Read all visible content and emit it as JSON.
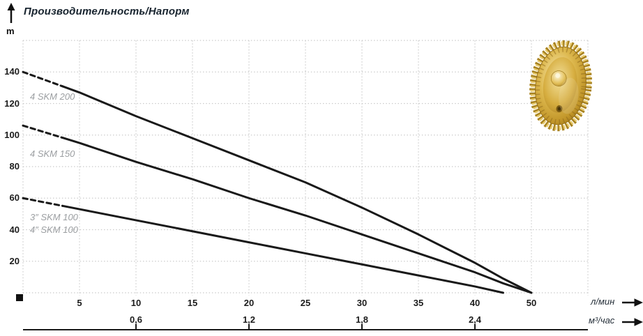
{
  "chart_data": {
    "type": "line",
    "title": "Производительность/Напорм",
    "y_unit": "m",
    "x_unit_primary": "л/мин",
    "x_unit_secondary": "м³/час",
    "ylim": [
      0,
      160
    ],
    "y_tick_step": 20,
    "y_ticks": [
      20,
      40,
      60,
      80,
      100,
      120,
      140
    ],
    "x_ticks_lmin": [
      5,
      10,
      15,
      20,
      25,
      30,
      35,
      40,
      50
    ],
    "x_ticks_m3h": [
      {
        "label": "0,6",
        "at_lmin": 10
      },
      {
        "label": "1,2",
        "at_lmin": 20
      },
      {
        "label": "1,8",
        "at_lmin": 30
      },
      {
        "label": "2,4",
        "at_lmin": 40
      }
    ],
    "grid": "dashed",
    "legend_position": "inline-left",
    "series": [
      {
        "name": "4 SKM 200",
        "label": "4 SKM 200",
        "dashed_below_q": 3.5,
        "points": [
          [
            0,
            140
          ],
          [
            5,
            127
          ],
          [
            10,
            112
          ],
          [
            15,
            98
          ],
          [
            20,
            84
          ],
          [
            25,
            70
          ],
          [
            30,
            54
          ],
          [
            35,
            37
          ],
          [
            40,
            19
          ],
          [
            45,
            9
          ],
          [
            50,
            0
          ]
        ]
      },
      {
        "name": "4 SKM 150",
        "label": "4 SKM 150",
        "dashed_below_q": 3.5,
        "points": [
          [
            0,
            106
          ],
          [
            5,
            95
          ],
          [
            10,
            83
          ],
          [
            15,
            72
          ],
          [
            20,
            60
          ],
          [
            25,
            49
          ],
          [
            30,
            37
          ],
          [
            35,
            25
          ],
          [
            40,
            13
          ],
          [
            45,
            6
          ],
          [
            50,
            0
          ]
        ]
      },
      {
        "name": "3″/4″ SKM 100",
        "label_lines": [
          "3″ SKM 100",
          "4″ SKM 100"
        ],
        "dashed_below_q": 3.5,
        "points": [
          [
            0,
            60
          ],
          [
            5,
            53
          ],
          [
            10,
            46
          ],
          [
            15,
            39
          ],
          [
            20,
            32
          ],
          [
            25,
            25
          ],
          [
            30,
            18
          ],
          [
            35,
            11
          ],
          [
            40,
            4
          ],
          [
            45,
            0
          ]
        ]
      }
    ],
    "colors": {
      "curve": "#191919",
      "grid": "#cbcbcb",
      "series_label": "#9b9ea1",
      "axis": "#1a1a1a",
      "impeller_brass": "#d0a735"
    }
  },
  "icons": {
    "up_arrow": "up-arrow",
    "right_arrow_primary": "right-arrow",
    "right_arrow_secondary": "right-arrow",
    "origin_marker": "black-square",
    "impeller": "brass-pump-impeller-photo"
  }
}
